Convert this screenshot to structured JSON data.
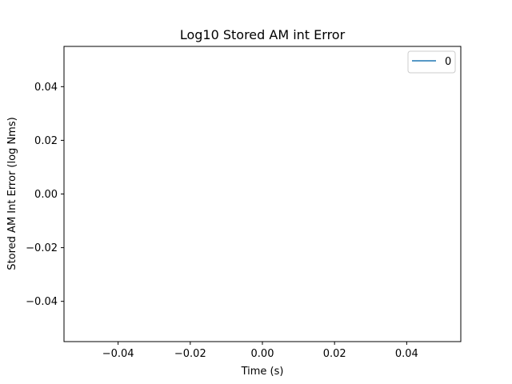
{
  "chart_data": {
    "type": "line",
    "title": "Log10 Stored AM int Error",
    "xlabel": "Time (s)",
    "ylabel": "Stored AM Int Error (log Nms)",
    "xlim": [
      -0.055,
      0.055
    ],
    "ylim": [
      -0.055,
      0.055
    ],
    "x_ticks": [
      -0.04,
      -0.02,
      0.0,
      0.02,
      0.04
    ],
    "x_tick_labels": [
      "−0.04",
      "−0.02",
      "0.00",
      "0.02",
      "0.04"
    ],
    "y_ticks": [
      -0.04,
      -0.02,
      0.0,
      0.02,
      0.04
    ],
    "y_tick_labels": [
      "−0.04",
      "−0.02",
      "0.00",
      "0.02",
      "0.04"
    ],
    "grid": false,
    "legend_position": "top-right",
    "series": [
      {
        "name": "0",
        "color": "#1f77b4",
        "x": [],
        "y": []
      }
    ]
  }
}
